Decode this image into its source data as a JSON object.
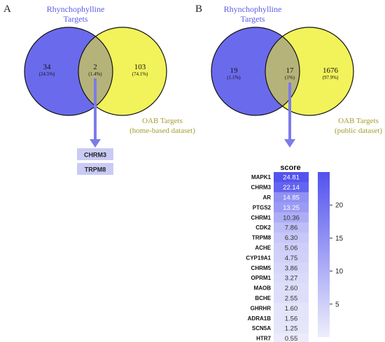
{
  "colors": {
    "label_blue": "#5a5ae6",
    "set_blue": "#6a6aec",
    "set_yellow": "#f2f25a",
    "overlap": "#b5b37a",
    "label_olive": "#a49b2e",
    "arrow": "#7b7bea",
    "gene_box": "#c9cbf4",
    "heat_high": "#5252ee",
    "heat_low": "#eeeefc"
  },
  "panelA": {
    "letter": "A",
    "left_title_1": "Rhynchophylline",
    "left_title_2": "Targets",
    "left_count": "34",
    "left_pct": "(24.5%)",
    "overlap_count": "2",
    "overlap_pct": "(1.4%)",
    "right_count": "103",
    "right_pct": "(74.1%)",
    "right_title_1": "OAB Targets",
    "right_title_2": "(home-based dataset)",
    "genes": [
      "CHRM3",
      "TRPM8"
    ]
  },
  "panelB": {
    "letter": "B",
    "left_title_1": "Rhynchophylline",
    "left_title_2": "Targets",
    "left_count": "19",
    "left_pct": "(1.1%)",
    "overlap_count": "17",
    "overlap_pct": "(1%)",
    "right_count": "1676",
    "right_pct": "(97.9%)",
    "right_title_1": "OAB Targets",
    "right_title_2": "(public dataset)"
  },
  "chart_data": {
    "type": "heatmap",
    "title": "score",
    "rows": [
      "MAPK1",
      "CHRM3",
      "AR",
      "PTGS2",
      "CHRM1",
      "CDK2",
      "TRPM8",
      "ACHE",
      "CYP19A1",
      "CHRM5",
      "OPRM1",
      "MAOB",
      "BCHE",
      "GHRHR",
      "ADRA1B",
      "SCN5A",
      "HTR7"
    ],
    "values": [
      "24.81",
      "22.14",
      "14.85",
      "13.25",
      "10.36",
      "7.86",
      "6.30",
      "5.06",
      "4.75",
      "3.86",
      "3.27",
      "2.60",
      "2.55",
      "1.60",
      "1.56",
      "1.25",
      "0.55"
    ],
    "colorbar_ticks": [
      "20",
      "15",
      "10",
      "5"
    ],
    "colorbar_range": [
      0,
      25
    ]
  }
}
